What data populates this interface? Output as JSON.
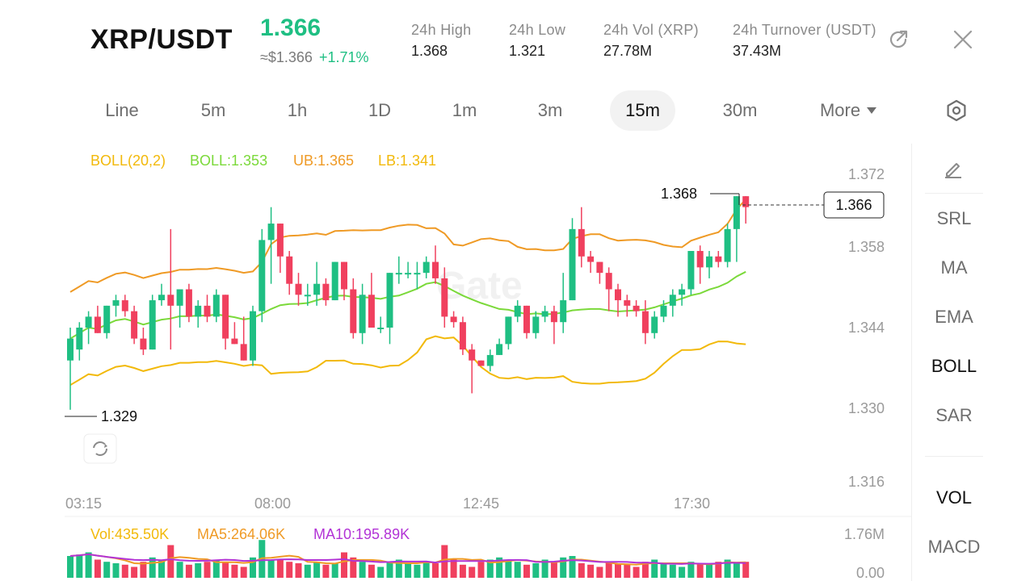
{
  "header": {
    "pair": "XRP/USDT",
    "last_price": "1.366",
    "usd_price": "≈$1.366",
    "change": "+1.71%",
    "stats": [
      {
        "label": "24h  High",
        "value": "1.368"
      },
      {
        "label": "24h  Low",
        "value": "1.321"
      },
      {
        "label": "24h  Vol (XRP)",
        "value": "27.78M"
      },
      {
        "label": "24h  Turnover (USDT)",
        "value": "37.43M"
      }
    ],
    "icons": {
      "share": "share-icon",
      "close": "close-icon"
    }
  },
  "tabs": [
    {
      "label": "Line"
    },
    {
      "label": "5m"
    },
    {
      "label": "1h"
    },
    {
      "label": "1D"
    },
    {
      "label": "1m"
    },
    {
      "label": "3m"
    },
    {
      "label": "15m",
      "active": true
    },
    {
      "label": "30m"
    },
    {
      "label": "More"
    }
  ],
  "boll_legend": {
    "params": "BOLL(20,2)",
    "mid": "BOLL:1.353",
    "ub": "UB:1.365",
    "lb": "LB:1.341"
  },
  "vol_legend": {
    "vol": "Vol:435.50K",
    "ma5": "MA5:264.06K",
    "ma10": "MA10:195.89K"
  },
  "indicators": {
    "main": [
      "SRL",
      "MA",
      "EMA",
      "BOLL",
      "SAR"
    ],
    "sub": [
      "VOL",
      "MACD"
    ],
    "active_main": "BOLL",
    "active_sub": "VOL"
  },
  "colors": {
    "up": "#1fbf83",
    "down": "#f0405e",
    "boll_mid": "#7bd93a",
    "boll_ub": "#ef9a25",
    "boll_lb": "#f2b90a",
    "ma10": "#b233d6"
  },
  "chart_data": {
    "type": "candlestick",
    "watermark": "Gate",
    "y_ticks": [
      "1.372",
      "1.358",
      "1.344",
      "1.330",
      "1.316"
    ],
    "x_ticks": [
      "03:15",
      "08:00",
      "12:45",
      "17:30"
    ],
    "high_label": "1.368",
    "low_label": "1.329",
    "current_price_label": "1.366",
    "vol_ticks": [
      "1.76M",
      "0.00"
    ],
    "candles": [
      [
        1.338,
        1.344,
        1.329,
        1.342
      ],
      [
        1.34,
        1.345,
        1.338,
        1.344
      ],
      [
        1.344,
        1.347,
        1.341,
        1.346
      ],
      [
        1.346,
        1.348,
        1.343,
        1.343
      ],
      [
        1.343,
        1.348,
        1.342,
        1.348
      ],
      [
        1.348,
        1.35,
        1.346,
        1.349
      ],
      [
        1.349,
        1.35,
        1.346,
        1.347
      ],
      [
        1.347,
        1.348,
        1.341,
        1.342
      ],
      [
        1.342,
        1.344,
        1.339,
        1.34
      ],
      [
        1.34,
        1.35,
        1.34,
        1.349
      ],
      [
        1.349,
        1.352,
        1.348,
        1.35
      ],
      [
        1.35,
        1.362,
        1.34,
        1.348
      ],
      [
        1.348,
        1.351,
        1.344,
        1.351
      ],
      [
        1.351,
        1.352,
        1.345,
        1.346
      ],
      [
        1.346,
        1.349,
        1.344,
        1.348
      ],
      [
        1.348,
        1.35,
        1.345,
        1.346
      ],
      [
        1.346,
        1.351,
        1.345,
        1.35
      ],
      [
        1.35,
        1.35,
        1.34,
        1.342
      ],
      [
        1.342,
        1.345,
        1.341,
        1.341
      ],
      [
        1.341,
        1.346,
        1.338,
        1.338
      ],
      [
        1.338,
        1.348,
        1.337,
        1.347
      ],
      [
        1.347,
        1.362,
        1.345,
        1.36
      ],
      [
        1.36,
        1.366,
        1.352,
        1.363
      ],
      [
        1.363,
        1.363,
        1.354,
        1.357
      ],
      [
        1.357,
        1.358,
        1.35,
        1.352
      ],
      [
        1.352,
        1.354,
        1.348,
        1.35
      ],
      [
        1.35,
        1.352,
        1.348,
        1.35
      ],
      [
        1.35,
        1.356,
        1.348,
        1.352
      ],
      [
        1.352,
        1.353,
        1.348,
        1.349
      ],
      [
        1.349,
        1.356,
        1.349,
        1.356
      ],
      [
        1.356,
        1.356,
        1.349,
        1.351
      ],
      [
        1.351,
        1.353,
        1.342,
        1.343
      ],
      [
        1.343,
        1.352,
        1.341,
        1.35
      ],
      [
        1.35,
        1.354,
        1.344,
        1.344
      ],
      [
        1.344,
        1.346,
        1.343,
        1.344
      ],
      [
        1.344,
        1.354,
        1.341,
        1.354
      ],
      [
        1.354,
        1.357,
        1.352,
        1.354
      ],
      [
        1.354,
        1.356,
        1.353,
        1.354
      ],
      [
        1.354,
        1.356,
        1.351,
        1.354
      ],
      [
        1.354,
        1.357,
        1.353,
        1.356
      ],
      [
        1.356,
        1.359,
        1.352,
        1.353
      ],
      [
        1.353,
        1.355,
        1.344,
        1.346
      ],
      [
        1.346,
        1.347,
        1.344,
        1.345
      ],
      [
        1.345,
        1.346,
        1.339,
        1.34
      ],
      [
        1.34,
        1.341,
        1.332,
        1.338
      ],
      [
        1.338,
        1.338,
        1.337,
        1.337
      ],
      [
        1.337,
        1.34,
        1.336,
        1.339
      ],
      [
        1.339,
        1.342,
        1.339,
        1.341
      ],
      [
        1.341,
        1.346,
        1.34,
        1.346
      ],
      [
        1.346,
        1.349,
        1.345,
        1.348
      ],
      [
        1.348,
        1.348,
        1.342,
        1.343
      ],
      [
        1.343,
        1.347,
        1.342,
        1.346
      ],
      [
        1.346,
        1.348,
        1.345,
        1.347
      ],
      [
        1.347,
        1.348,
        1.341,
        1.345
      ],
      [
        1.345,
        1.354,
        1.343,
        1.349
      ],
      [
        1.349,
        1.364,
        1.349,
        1.362
      ],
      [
        1.362,
        1.366,
        1.355,
        1.357
      ],
      [
        1.357,
        1.358,
        1.354,
        1.356
      ],
      [
        1.356,
        1.356,
        1.352,
        1.354
      ],
      [
        1.354,
        1.355,
        1.347,
        1.351
      ],
      [
        1.351,
        1.352,
        1.346,
        1.349
      ],
      [
        1.349,
        1.35,
        1.346,
        1.348
      ],
      [
        1.348,
        1.349,
        1.346,
        1.347
      ],
      [
        1.347,
        1.349,
        1.341,
        1.343
      ],
      [
        1.343,
        1.347,
        1.342,
        1.346
      ],
      [
        1.346,
        1.349,
        1.345,
        1.348
      ],
      [
        1.348,
        1.351,
        1.346,
        1.35
      ],
      [
        1.35,
        1.352,
        1.348,
        1.351
      ],
      [
        1.351,
        1.358,
        1.35,
        1.358
      ],
      [
        1.358,
        1.359,
        1.352,
        1.355
      ],
      [
        1.355,
        1.358,
        1.353,
        1.357
      ],
      [
        1.357,
        1.358,
        1.355,
        1.356
      ],
      [
        1.356,
        1.363,
        1.355,
        1.362
      ],
      [
        1.362,
        1.368,
        1.356,
        1.368
      ],
      [
        1.368,
        1.368,
        1.363,
        1.366
      ]
    ],
    "volume": [
      30,
      32,
      35,
      25,
      22,
      20,
      18,
      15,
      22,
      28,
      25,
      45,
      22,
      18,
      20,
      22,
      25,
      22,
      18,
      15,
      28,
      52,
      25,
      25,
      22,
      20,
      18,
      22,
      18,
      20,
      35,
      28,
      22,
      18,
      15,
      22,
      25,
      20,
      18,
      22,
      20,
      45,
      25,
      18,
      15,
      22,
      25,
      28,
      25,
      22,
      18,
      20,
      25,
      22,
      28,
      30,
      20,
      18,
      15,
      22,
      20,
      18,
      15,
      22,
      25,
      20,
      18,
      15,
      22,
      20,
      18,
      22,
      25,
      20,
      22
    ]
  }
}
